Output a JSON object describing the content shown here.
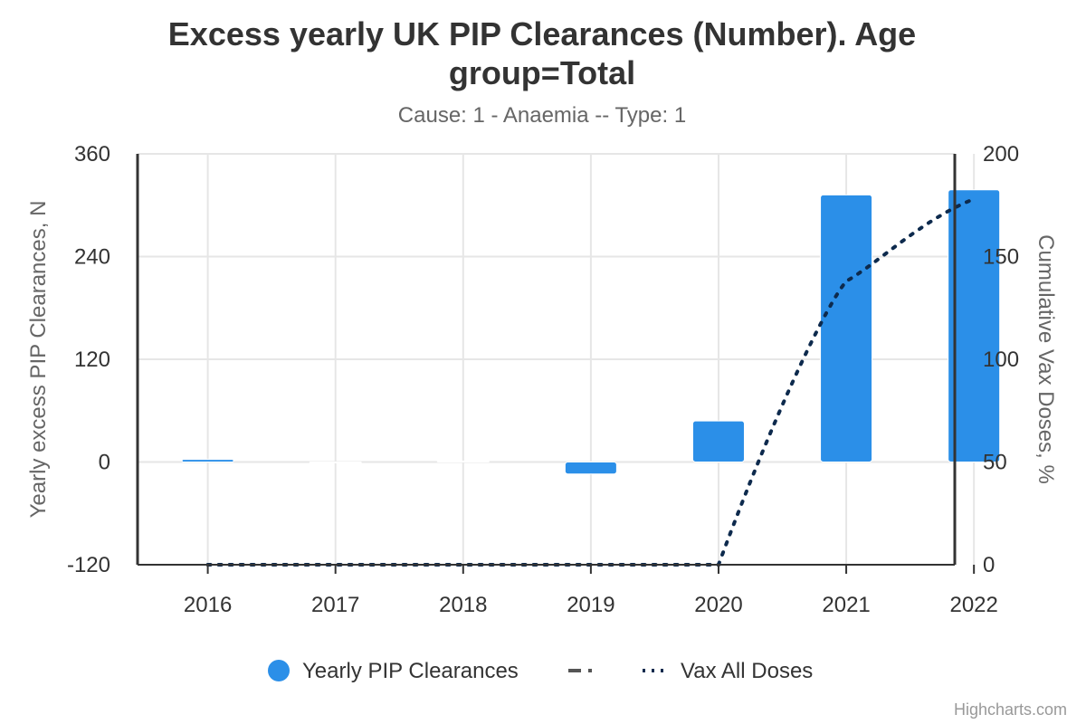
{
  "colors": {
    "bar": "#2b8fe8",
    "vax_line": "#0d2a4d",
    "dash_line": "#555555"
  },
  "legend": {
    "items": [
      {
        "label": "Yearly PIP Clearances",
        "icon": "circle-marker-icon"
      },
      {
        "label": "",
        "icon": "dash-dot-line-icon"
      },
      {
        "label": "Vax All Doses",
        "icon": "dotted-line-icon"
      }
    ]
  },
  "credits": "Highcharts.com",
  "chart_data": {
    "type": "bar",
    "title": "Excess yearly UK PIP Clearances (Number). Age group=Total",
    "subtitle": "Cause: 1 - Anaemia -- Type: 1",
    "categories": [
      "2016",
      "2017",
      "2018",
      "2019",
      "2020",
      "2021",
      "2022"
    ],
    "y_left": {
      "label": "Yearly excess PIP Clearances, N",
      "range": [
        -120,
        360
      ],
      "ticks": [
        "-120",
        "0",
        "120",
        "240",
        "360"
      ]
    },
    "y_right": {
      "label": "Cumulative Vax Doses, %",
      "range": [
        0,
        200
      ],
      "ticks": [
        "0",
        "50",
        "100",
        "150",
        "200"
      ]
    },
    "series": [
      {
        "name": "Yearly PIP Clearances",
        "type": "column",
        "axis": "left",
        "values": [
          3,
          0,
          1,
          -14,
          48,
          312,
          318
        ]
      },
      {
        "name": "Vax All Doses",
        "type": "line",
        "style": "dotted",
        "axis": "right",
        "values": [
          0,
          0,
          0,
          0,
          0,
          138,
          178
        ]
      }
    ],
    "grid": true,
    "legend_position": "bottom-center"
  }
}
